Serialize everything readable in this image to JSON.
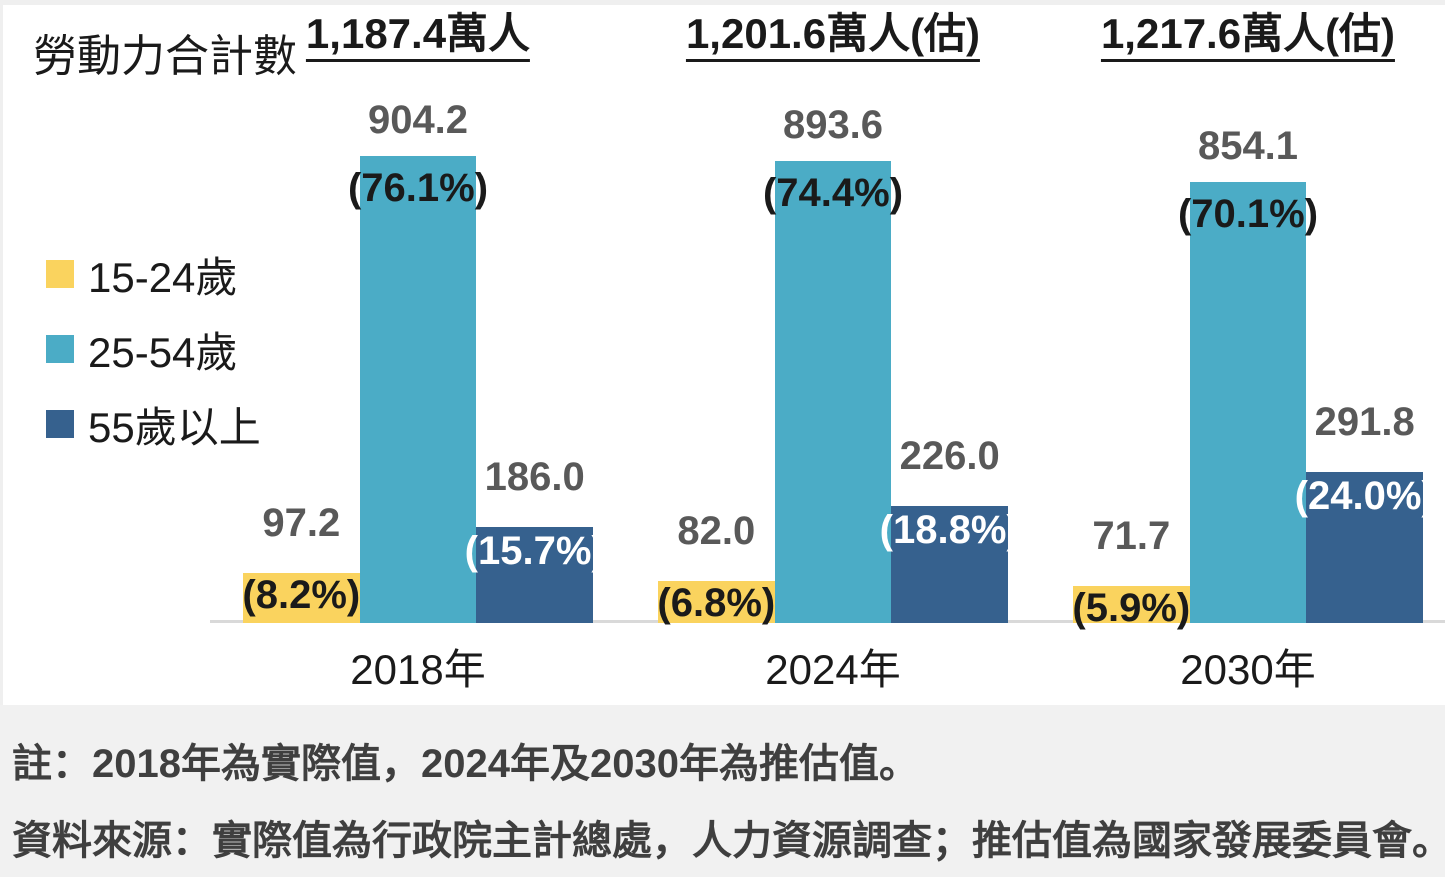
{
  "title": "勞動力合計數",
  "chart_data": {
    "type": "bar",
    "title": "勞動力合計數",
    "unit": "萬人",
    "grid": false,
    "legend_position": "left",
    "ylim": [
      0,
      950
    ],
    "axis_color": "#D9D9D9",
    "value_label_color": "#595959",
    "categories": [
      "2018年",
      "2024年",
      "2030年"
    ],
    "group_totals": [
      "1,187.4萬人",
      "1,201.6萬人(估)",
      "1,217.6萬人(估)"
    ],
    "group_total_values": [
      1187.4,
      1201.6,
      1217.6
    ],
    "series": [
      {
        "name": "15-24歲",
        "color": "#FAD35E",
        "values": [
          97.2,
          82.0,
          71.7
        ],
        "value_labels": [
          "97.2",
          "82.0",
          "71.7"
        ],
        "percent_labels": [
          "(8.2%)",
          "(6.8%)",
          "(5.9%)"
        ],
        "percent_label_color": "#1A1A1A"
      },
      {
        "name": "25-54歲",
        "color": "#4BACC6",
        "values": [
          904.2,
          893.6,
          854.1
        ],
        "value_labels": [
          "904.2",
          "893.6",
          "854.1"
        ],
        "percent_labels": [
          "(76.1%)",
          "(74.4%)",
          "(70.1%)"
        ],
        "percent_label_color": "#1A1A1A"
      },
      {
        "name": "55歲以上",
        "color": "#36618E",
        "values": [
          186.0,
          226.0,
          291.8
        ],
        "value_labels": [
          "186.0",
          "226.0",
          "291.8"
        ],
        "percent_labels": [
          "(15.7%)",
          "(18.8%)",
          "(24.0%)"
        ],
        "percent_label_color": "#FFFFFF"
      }
    ]
  },
  "notes": {
    "note": "註：2018年為實際值，2024年及2030年為推估值。",
    "source": "資料來源：實際值為行政院主計總處，人力資源調查；推估值為國家發展委員會。"
  }
}
